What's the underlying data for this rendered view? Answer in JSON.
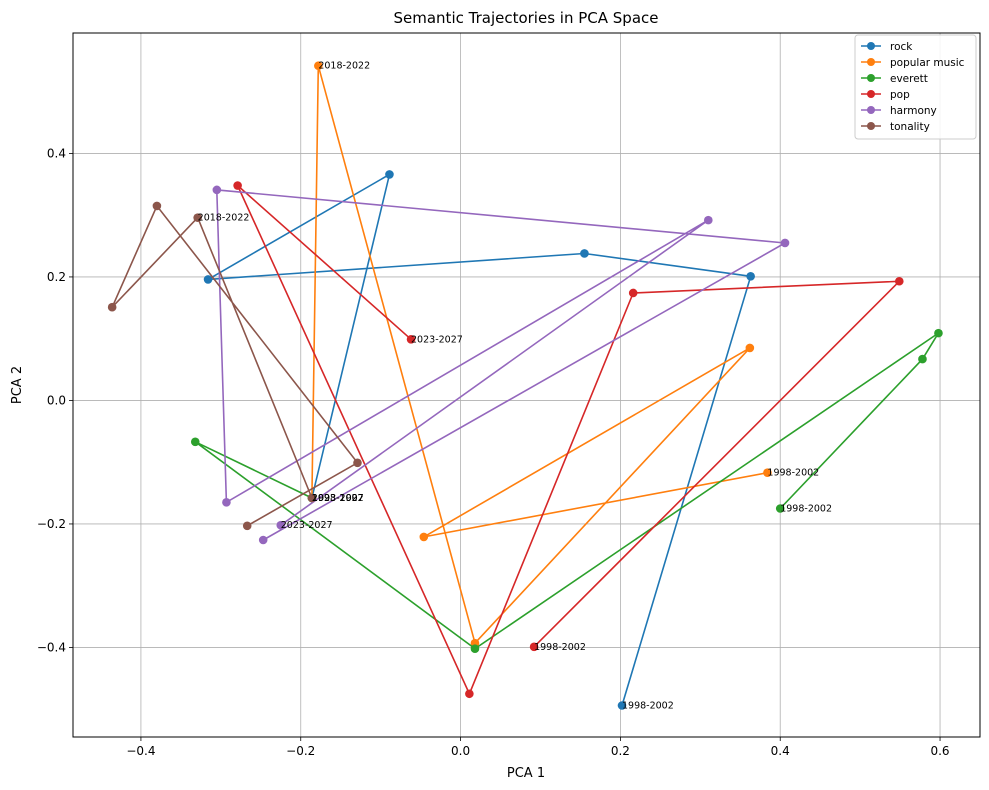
{
  "chart_data": {
    "type": "line",
    "title": "Semantic Trajectories in PCA Space",
    "xlabel": "PCA 1",
    "ylabel": "PCA 2",
    "xlim": [
      -0.485,
      0.65
    ],
    "ylim": [
      -0.545,
      0.595
    ],
    "xticks": [
      -0.4,
      -0.2,
      0.0,
      0.2,
      0.4,
      0.6
    ],
    "xtick_labels": [
      "−0.4",
      "−0.2",
      "0.0",
      "0.2",
      "0.4",
      "0.6"
    ],
    "yticks": [
      -0.4,
      -0.2,
      0.0,
      0.2,
      0.4
    ],
    "ytick_labels": [
      "−0.4",
      "−0.2",
      "0.0",
      "0.2",
      "0.4"
    ],
    "grid": true,
    "legend_position": "top-right",
    "series": [
      {
        "name": "rock",
        "color": "#1f77b4",
        "x": [
          0.202,
          0.363,
          0.155,
          -0.316,
          -0.089,
          -0.186
        ],
        "y": [
          -0.494,
          0.201,
          0.238,
          0.196,
          0.366,
          -0.158
        ]
      },
      {
        "name": "popular music",
        "color": "#ff7f0e",
        "x": [
          0.384,
          -0.046,
          0.362,
          0.018,
          -0.178,
          -0.186
        ],
        "y": [
          -0.117,
          -0.221,
          0.085,
          -0.393,
          0.542,
          -0.158
        ]
      },
      {
        "name": "everett",
        "color": "#2ca02c",
        "x": [
          0.4,
          0.578,
          0.598,
          0.018,
          -0.332,
          -0.186
        ],
        "y": [
          -0.175,
          0.067,
          0.109,
          -0.402,
          -0.067,
          -0.158
        ]
      },
      {
        "name": "pop",
        "color": "#d62728",
        "x": [
          0.092,
          0.549,
          0.216,
          0.011,
          -0.279,
          -0.062
        ],
        "y": [
          -0.399,
          0.193,
          0.174,
          -0.475,
          0.348,
          0.099
        ]
      },
      {
        "name": "harmony",
        "color": "#9467bd",
        "x": [
          -0.247,
          0.406,
          -0.305,
          -0.293,
          0.31,
          -0.225
        ],
        "y": [
          -0.226,
          0.255,
          0.341,
          -0.165,
          0.292,
          -0.202
        ]
      },
      {
        "name": "tonality",
        "color": "#8c564b",
        "x": [
          -0.267,
          -0.129,
          -0.38,
          -0.436,
          -0.329,
          -0.186
        ],
        "y": [
          -0.203,
          -0.101,
          0.315,
          0.151,
          0.296,
          -0.158
        ]
      }
    ],
    "annotations": [
      {
        "text": "1998-2002",
        "x": 0.202,
        "y": -0.494
      },
      {
        "text": "1998-2002",
        "x": 0.384,
        "y": -0.117
      },
      {
        "text": "1998-2002",
        "x": 0.4,
        "y": -0.175
      },
      {
        "text": "1998-2002",
        "x": 0.092,
        "y": -0.399
      },
      {
        "text": "1998-2002",
        "x": -0.186,
        "y": -0.158
      },
      {
        "text": "1993-1997",
        "x": -0.186,
        "y": -0.158
      },
      {
        "text": "2023-2027",
        "x": -0.186,
        "y": -0.158
      },
      {
        "text": "2018-2022",
        "x": -0.178,
        "y": 0.542
      },
      {
        "text": "2023-2027",
        "x": -0.062,
        "y": 0.099
      },
      {
        "text": "2018-2022",
        "x": -0.329,
        "y": 0.296
      },
      {
        "text": "2023-2027",
        "x": -0.225,
        "y": -0.202
      }
    ]
  }
}
